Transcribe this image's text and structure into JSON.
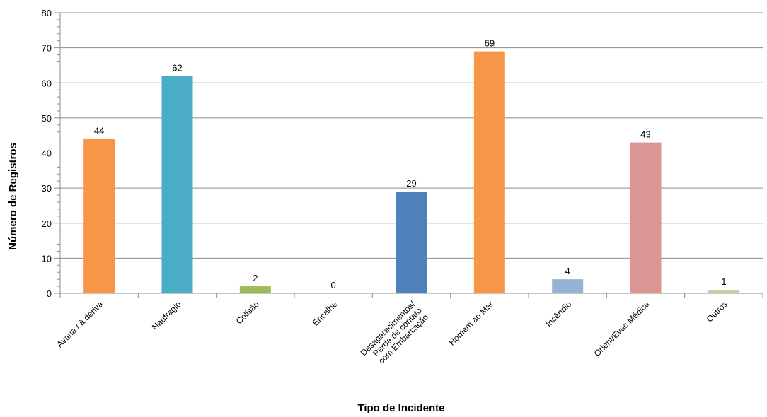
{
  "chart_data": {
    "type": "bar",
    "title": "",
    "xlabel": "Tipo de Incidente",
    "ylabel": "Número de Registros",
    "ylim": [
      0,
      80
    ],
    "yticks": [
      0,
      10,
      20,
      30,
      40,
      50,
      60,
      70,
      80
    ],
    "grid": true,
    "legend": "none",
    "categories": [
      [
        "Avaria / à deriva"
      ],
      [
        "Naufrágio"
      ],
      [
        "Colisão"
      ],
      [
        "Encalhe"
      ],
      [
        "Desaparecimentos/",
        "Perda de contato",
        "com Embarcação"
      ],
      [
        "Homem ao Mar"
      ],
      [
        "Incêndio"
      ],
      [
        "Orient/Evac Médica"
      ],
      [
        "Outros"
      ]
    ],
    "values": [
      44,
      62,
      2,
      0,
      29,
      69,
      4,
      43,
      1
    ],
    "colors": [
      "#F79646",
      "#4BACC6",
      "#9BBB59",
      "#8064A2",
      "#4F81BD",
      "#F79646",
      "#95B3D7",
      "#D99694",
      "#C3D69B"
    ]
  }
}
